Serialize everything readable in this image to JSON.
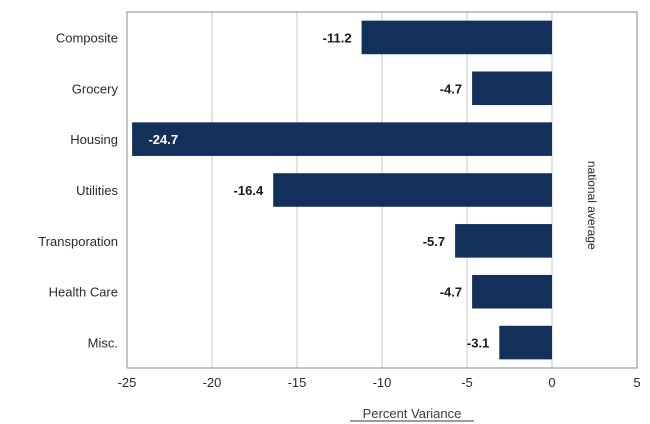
{
  "chart_data": {
    "type": "bar",
    "orientation": "horizontal",
    "categories": [
      "Composite",
      "Grocery",
      "Housing",
      "Utilities",
      "Transporation",
      "Health Care",
      "Misc."
    ],
    "values": [
      -11.2,
      -4.7,
      -24.7,
      -16.4,
      -5.7,
      -4.7,
      -3.1
    ],
    "data_labels": [
      "-11.2",
      "-4.7",
      "-24.7",
      "-16.4",
      "-5.7",
      "-4.7",
      "-3.1"
    ],
    "xlabel": "Percent Variance",
    "xlim": [
      -25,
      5
    ],
    "xticks": [
      -25,
      -20,
      -15,
      -10,
      -5,
      0,
      5
    ],
    "xtick_labels": [
      "-25",
      "-20",
      "-15",
      "-10",
      "-5",
      "0",
      "5"
    ],
    "reference_line_label": "national average",
    "grid": "vertical",
    "bar_color": "#12305a"
  }
}
